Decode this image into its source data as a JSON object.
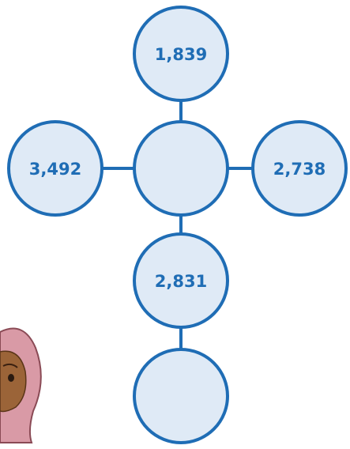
{
  "nodes": [
    {
      "label": "1,839"
    },
    {
      "label": "3,492"
    },
    {
      "label": "2,738"
    },
    {
      "label": "2,831"
    }
  ]
}
